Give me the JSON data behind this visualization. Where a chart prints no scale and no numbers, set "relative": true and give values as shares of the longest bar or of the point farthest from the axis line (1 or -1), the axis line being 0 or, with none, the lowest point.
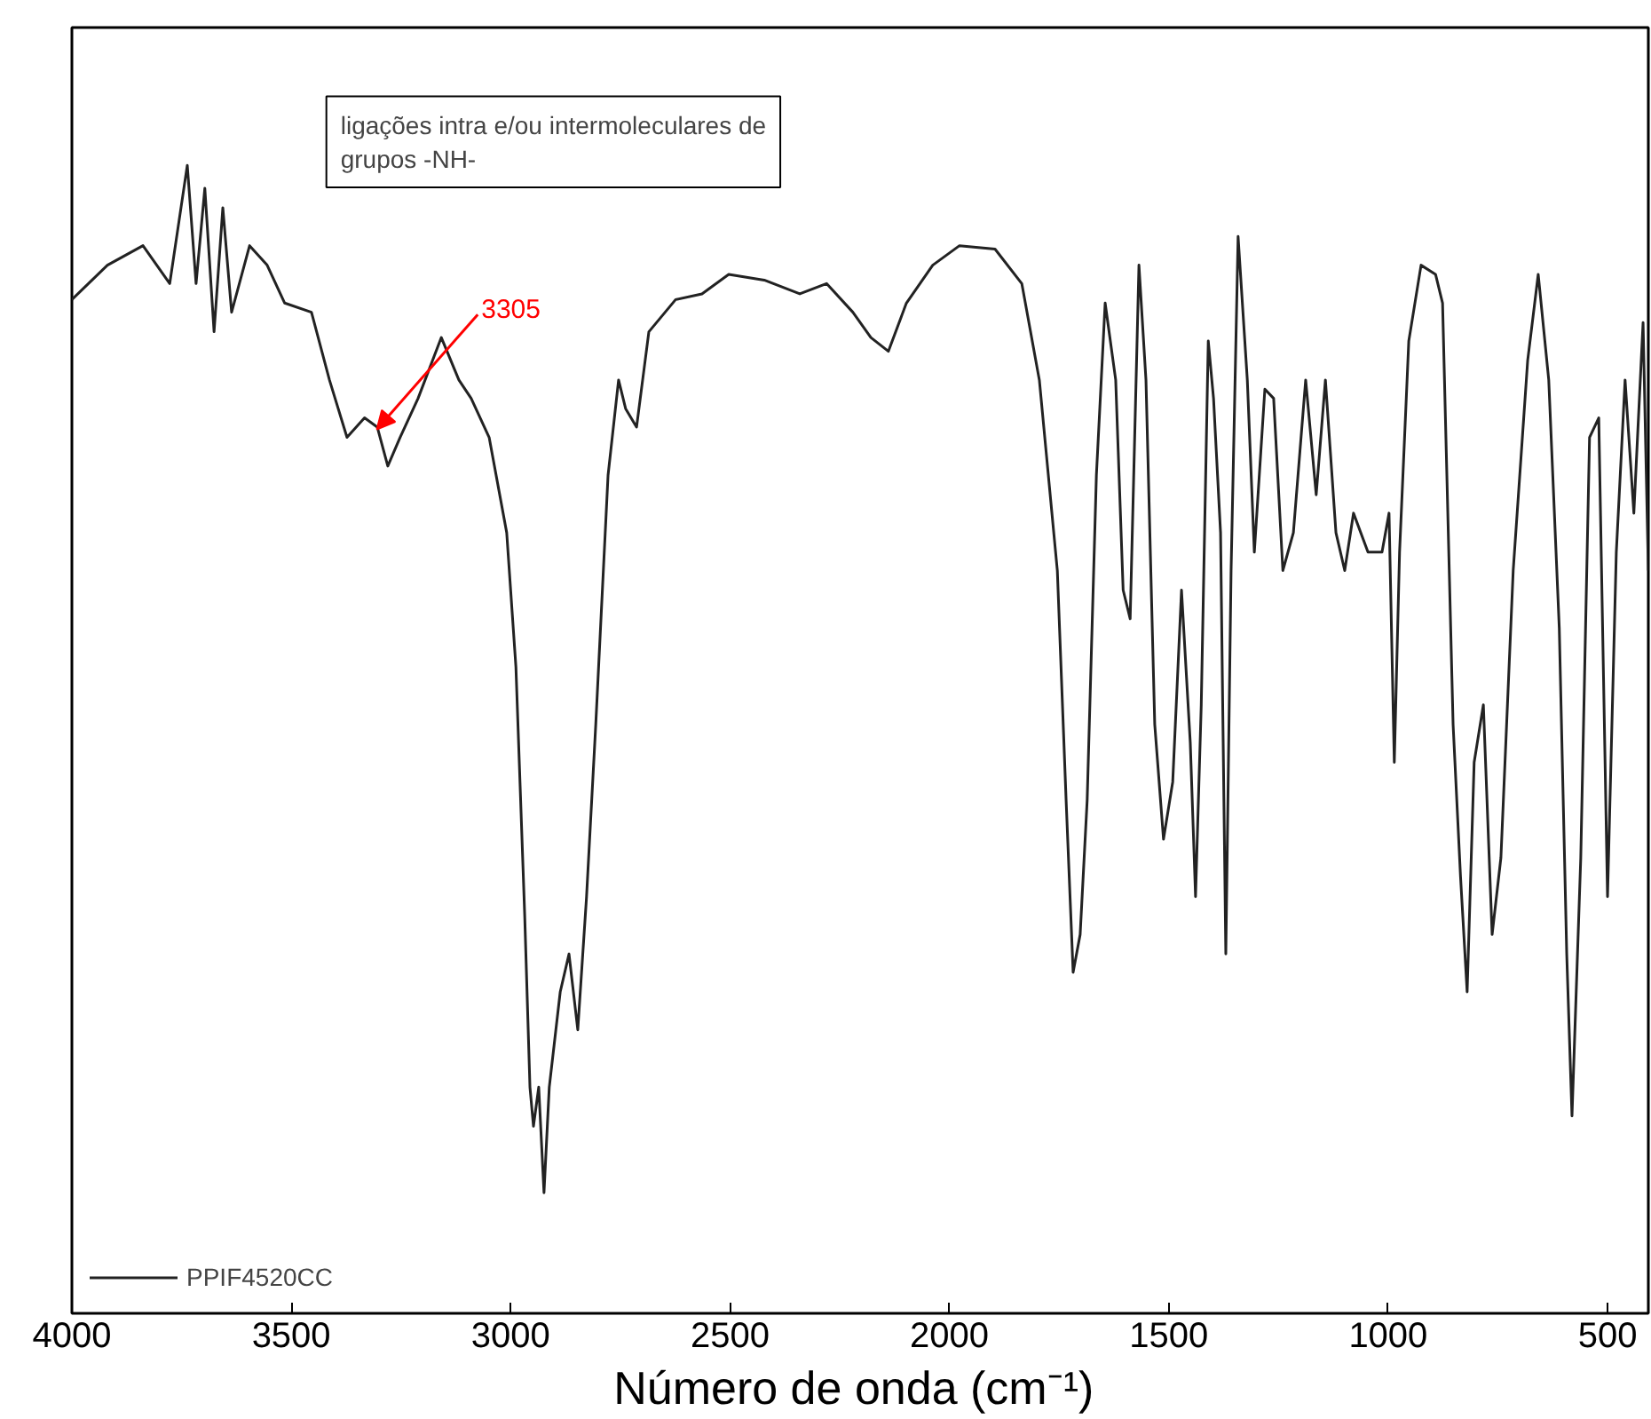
{
  "chart_data": {
    "type": "line",
    "relative": true,
    "xlabel": "Número  de onda (cm⁻¹)",
    "xlim": [
      4000,
      407
    ],
    "xticks": [
      4000,
      3500,
      3000,
      2500,
      2000,
      1500,
      1000,
      500
    ],
    "grid": false,
    "legend": "bottom left",
    "annotations": [
      "ligações intra e/ou intermoleculares de\ngrupos -NH-",
      {
        "text": "3305",
        "x": 3305,
        "y": 0.77
      }
    ],
    "x": [
      4000,
      3919,
      3838,
      3777,
      3737,
      3717,
      3697,
      3676,
      3656,
      3636,
      3595,
      3555,
      3515,
      3454,
      3413,
      3373,
      3333,
      3304,
      3280,
      3252,
      3211,
      3158,
      3118,
      3090,
      3049,
      3009,
      2988,
      2968,
      2956,
      2948,
      2936,
      2924,
      2912,
      2887,
      2867,
      2847,
      2827,
      2806,
      2778,
      2754,
      2738,
      2713,
      2685,
      2624,
      2564,
      2503,
      2422,
      2341,
      2280,
      2220,
      2179,
      2139,
      2098,
      2038,
      1977,
      1896,
      1835,
      1795,
      1754,
      1734,
      1718,
      1702,
      1686,
      1665,
      1645,
      1621,
      1604,
      1588,
      1568,
      1552,
      1532,
      1512,
      1491,
      1471,
      1451,
      1439,
      1426,
      1410,
      1398,
      1382,
      1370,
      1358,
      1342,
      1321,
      1305,
      1281,
      1261,
      1240,
      1216,
      1188,
      1164,
      1143,
      1119,
      1099,
      1079,
      1046,
      1014,
      998,
      986,
      974,
      953,
      925,
      892,
      876,
      852,
      835,
      820,
      804,
      783,
      763,
      743,
      715,
      682,
      658,
      634,
      610,
      593,
      581,
      561,
      541,
      520,
      500,
      480,
      460,
      440,
      419,
      407
    ],
    "series": [
      {
        "name": "PPIF4520CC",
        "color": "#222222",
        "values": [
          0.883,
          0.913,
          0.93,
          0.897,
          1,
          0.897,
          0.98,
          0.855,
          0.963,
          0.872,
          0.93,
          0.913,
          0.88,
          0.872,
          0.813,
          0.763,
          0.78,
          0.772,
          0.738,
          0.763,
          0.797,
          0.85,
          0.813,
          0.797,
          0.763,
          0.68,
          0.563,
          0.347,
          0.197,
          0.163,
          0.197,
          0.105,
          0.197,
          0.28,
          0.313,
          0.247,
          0.363,
          0.513,
          0.73,
          0.813,
          0.788,
          0.772,
          0.855,
          0.883,
          0.888,
          0.905,
          0.9,
          0.888,
          0.897,
          0.872,
          0.85,
          0.838,
          0.88,
          0.913,
          0.93,
          0.927,
          0.897,
          0.813,
          0.647,
          0.447,
          0.297,
          0.33,
          0.447,
          0.73,
          0.88,
          0.813,
          0.63,
          0.605,
          0.913,
          0.813,
          0.513,
          0.413,
          0.463,
          0.63,
          0.497,
          0.363,
          0.53,
          0.847,
          0.797,
          0.68,
          0.313,
          0.647,
          0.938,
          0.813,
          0.663,
          0.805,
          0.797,
          0.647,
          0.68,
          0.813,
          0.713,
          0.813,
          0.68,
          0.647,
          0.697,
          0.663,
          0.663,
          0.697,
          0.48,
          0.663,
          0.847,
          0.913,
          0.905,
          0.88,
          0.513,
          0.38,
          0.28,
          0.48,
          0.53,
          0.33,
          0.397,
          0.647,
          0.83,
          0.905,
          0.813,
          0.597,
          0.313,
          0.172,
          0.397,
          0.763,
          0.78,
          0.363,
          0.663,
          0.813,
          0.697,
          0.863,
          0.647
        ]
      }
    ]
  }
}
